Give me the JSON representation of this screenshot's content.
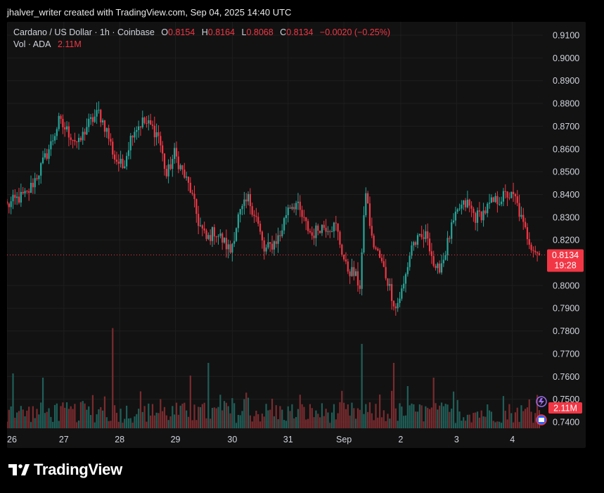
{
  "attribution": "jhalver_writer created with TradingView.com, Sep 04, 2025 14:40 UTC",
  "header": {
    "symbol": "Cardano / US Dollar · 1h · Coinbase",
    "open_label": "O",
    "open": "0.8154",
    "high_label": "H",
    "high": "0.8164",
    "low_label": "L",
    "low": "0.8068",
    "close_label": "C",
    "close": "0.8134",
    "change": "−0.0020 (−0.25%)",
    "vol_label": "Vol · ADA",
    "vol_value": "2.11M"
  },
  "footer": {
    "brand": "TradingView"
  },
  "colors": {
    "up": "#26a69a",
    "down": "#f23645",
    "up_vol": "#1f5f58",
    "down_vol": "#7a2b2f",
    "grid": "#1e1e1e",
    "background": "#121212"
  },
  "chart_data": {
    "type": "candlestick",
    "title": "Cardano / US Dollar · 1h · Coinbase",
    "x_ticks": [
      "26",
      "27",
      "28",
      "29",
      "30",
      "31",
      "Sep",
      "2",
      "3",
      "4"
    ],
    "y_ticks": [
      "0.9100",
      "0.9000",
      "0.8900",
      "0.8800",
      "0.8700",
      "0.8600",
      "0.8500",
      "0.8400",
      "0.8300",
      "0.8200",
      "0.8000",
      "0.7900",
      "0.7800",
      "0.7700",
      "0.7600",
      "0.7500",
      "0.7400"
    ],
    "ylim": [
      0.738,
      0.915
    ],
    "last_price": "0.8134",
    "countdown": "19:28",
    "volume_label": "2.11M",
    "anchors": [
      {
        "t": 0,
        "v": 0.835
      },
      {
        "t": 5,
        "v": 0.838
      },
      {
        "t": 10,
        "v": 0.84
      },
      {
        "t": 16,
        "v": 0.85
      },
      {
        "t": 22,
        "v": 0.862
      },
      {
        "t": 26,
        "v": 0.872
      },
      {
        "t": 30,
        "v": 0.868
      },
      {
        "t": 36,
        "v": 0.862
      },
      {
        "t": 40,
        "v": 0.87
      },
      {
        "t": 46,
        "v": 0.876
      },
      {
        "t": 50,
        "v": 0.868
      },
      {
        "t": 54,
        "v": 0.856
      },
      {
        "t": 58,
        "v": 0.852
      },
      {
        "t": 63,
        "v": 0.868
      },
      {
        "t": 68,
        "v": 0.872
      },
      {
        "t": 72,
        "v": 0.87
      },
      {
        "t": 76,
        "v": 0.866
      },
      {
        "t": 80,
        "v": 0.848
      },
      {
        "t": 84,
        "v": 0.858
      },
      {
        "t": 88,
        "v": 0.85
      },
      {
        "t": 92,
        "v": 0.842
      },
      {
        "t": 96,
        "v": 0.828
      },
      {
        "t": 100,
        "v": 0.82
      },
      {
        "t": 104,
        "v": 0.824
      },
      {
        "t": 108,
        "v": 0.82
      },
      {
        "t": 112,
        "v": 0.815
      },
      {
        "t": 116,
        "v": 0.83
      },
      {
        "t": 121,
        "v": 0.838
      },
      {
        "t": 125,
        "v": 0.83
      },
      {
        "t": 129,
        "v": 0.815
      },
      {
        "t": 133,
        "v": 0.818
      },
      {
        "t": 137,
        "v": 0.822
      },
      {
        "t": 141,
        "v": 0.835
      },
      {
        "t": 145,
        "v": 0.836
      },
      {
        "t": 149,
        "v": 0.828
      },
      {
        "t": 153,
        "v": 0.822
      },
      {
        "t": 157,
        "v": 0.826
      },
      {
        "t": 161,
        "v": 0.826
      },
      {
        "t": 165,
        "v": 0.826
      },
      {
        "t": 170,
        "v": 0.808
      },
      {
        "t": 174,
        "v": 0.805
      },
      {
        "t": 177,
        "v": 0.8
      },
      {
        "t": 180,
        "v": 0.842
      },
      {
        "t": 183,
        "v": 0.82
      },
      {
        "t": 187,
        "v": 0.812
      },
      {
        "t": 191,
        "v": 0.802
      },
      {
        "t": 195,
        "v": 0.79
      },
      {
        "t": 199,
        "v": 0.8
      },
      {
        "t": 203,
        "v": 0.818
      },
      {
        "t": 207,
        "v": 0.82
      },
      {
        "t": 211,
        "v": 0.822
      },
      {
        "t": 215,
        "v": 0.805
      },
      {
        "t": 219,
        "v": 0.812
      },
      {
        "t": 223,
        "v": 0.825
      },
      {
        "t": 227,
        "v": 0.834
      },
      {
        "t": 231,
        "v": 0.836
      },
      {
        "t": 235,
        "v": 0.83
      },
      {
        "t": 239,
        "v": 0.832
      },
      {
        "t": 243,
        "v": 0.836
      },
      {
        "t": 247,
        "v": 0.838
      },
      {
        "t": 251,
        "v": 0.84
      },
      {
        "t": 255,
        "v": 0.838
      },
      {
        "t": 259,
        "v": 0.826
      },
      {
        "t": 263,
        "v": 0.818
      },
      {
        "t": 267,
        "v": 0.813
      }
    ],
    "volume_spikes": [
      {
        "t": 53,
        "h": 0.95
      },
      {
        "t": 101,
        "h": 0.62
      },
      {
        "t": 178,
        "h": 0.8
      },
      {
        "t": 194,
        "h": 0.62
      },
      {
        "t": 3,
        "h": 0.52
      },
      {
        "t": 18,
        "h": 0.48
      },
      {
        "t": 92,
        "h": 0.5
      },
      {
        "t": 214,
        "h": 0.48
      },
      {
        "t": 201,
        "h": 0.4
      }
    ]
  }
}
